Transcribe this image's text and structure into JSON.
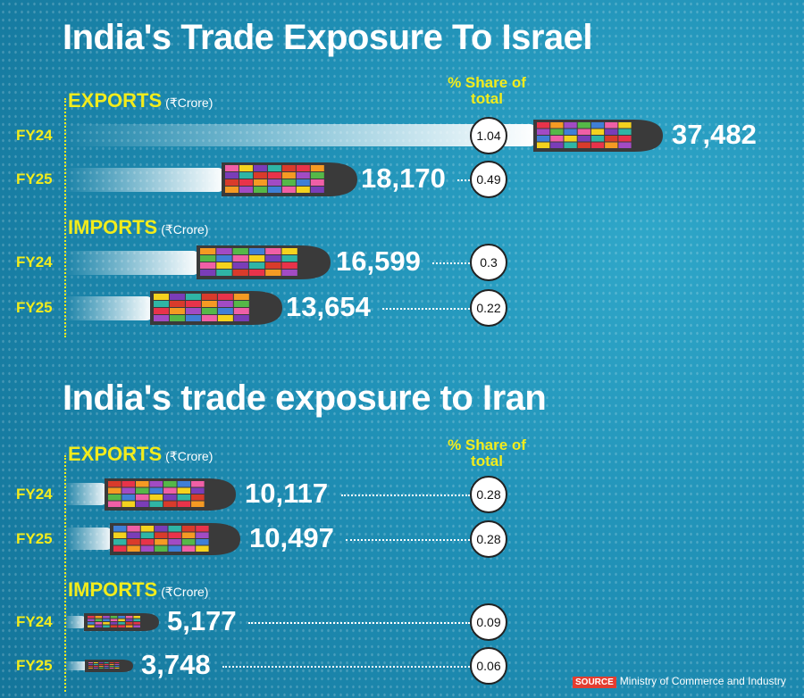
{
  "chart_data": [
    {
      "type": "bar",
      "title": "India's Trade Exposure To Israel",
      "share_header": "% Share of total",
      "groups": [
        {
          "name": "EXPORTS",
          "unit": "(₹Crore)",
          "rows": [
            {
              "fy": "FY24",
              "value": 37482,
              "label": "37,482",
              "share": "1.04"
            },
            {
              "fy": "FY25",
              "value": 18170,
              "label": "18,170",
              "share": "0.49"
            }
          ]
        },
        {
          "name": "IMPORTS",
          "unit": "(₹Crore)",
          "rows": [
            {
              "fy": "FY24",
              "value": 16599,
              "label": "16,599",
              "share": "0.3"
            },
            {
              "fy": "FY25",
              "value": 13654,
              "label": "13,654",
              "share": "0.22"
            }
          ]
        }
      ]
    },
    {
      "type": "bar",
      "title": "India's trade exposure to Iran",
      "share_header": "% Share of total",
      "groups": [
        {
          "name": "EXPORTS",
          "unit": "(₹Crore)",
          "rows": [
            {
              "fy": "FY24",
              "value": 10117,
              "label": "10,117",
              "share": "0.28"
            },
            {
              "fy": "FY25",
              "value": 10497,
              "label": "10,497",
              "share": "0.28"
            }
          ]
        },
        {
          "name": "IMPORTS",
          "unit": "(₹Crore)",
          "rows": [
            {
              "fy": "FY24",
              "value": 5177,
              "label": "5,177",
              "share": "0.09"
            },
            {
              "fy": "FY25",
              "value": 3748,
              "label": "3,748",
              "share": "0.06"
            }
          ]
        }
      ]
    }
  ],
  "source": {
    "tag": "SOURCE",
    "text": "Ministry of Commerce and Industry"
  },
  "colors": {
    "background": "#1f8fb5",
    "accent_yellow": "#f2ec1c",
    "ship_hull": "#3a3a3a",
    "containers": [
      "#e8334a",
      "#f59a23",
      "#a24bc4",
      "#55b848",
      "#3f7fd6",
      "#f05fa6",
      "#f4d21e",
      "#7a3db8",
      "#2fb5a5",
      "#d93b2b"
    ]
  }
}
